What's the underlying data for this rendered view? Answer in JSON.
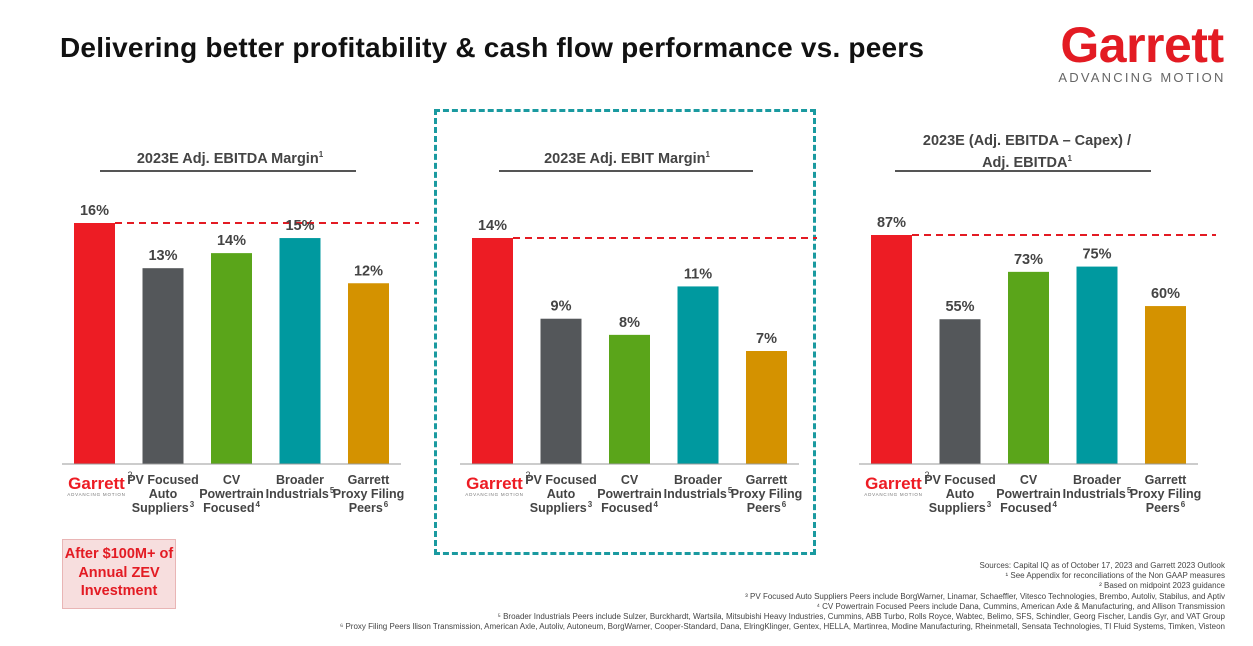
{
  "header": {
    "title": "Delivering better profitability & cash flow performance vs. peers",
    "logo_word": "Garrett",
    "logo_tagline": "ADVANCING MOTION"
  },
  "callout": {
    "text_line1": "After $100M+ of",
    "text_line2": "Annual ZEV",
    "text_line3": "Investment"
  },
  "colors": {
    "garrett_red": "#ed1c24",
    "pv_gray": "#54575a",
    "cv_green": "#5aa51a",
    "broader_teal": "#00999f",
    "proxy_gold": "#d49200",
    "dashed_line": "#e31b23",
    "highlight_border": "#1a9aa0"
  },
  "chart_data": [
    {
      "type": "bar",
      "title": "2023E Adj. EBITDA Margin",
      "title_sup": "1",
      "categories": [
        "Garrett",
        "PV Focused Auto Suppliers",
        "CV Powertrain Focused",
        "Broader Industrials",
        "Garrett Proxy Filing Peers"
      ],
      "values": [
        16,
        13,
        14,
        15,
        12
      ],
      "value_labels": [
        "16%",
        "13%",
        "14%",
        "15%",
        "12%"
      ],
      "ylim": [
        0,
        16
      ],
      "reference_line": 16
    },
    {
      "type": "bar",
      "title": "2023E Adj. EBIT Margin",
      "title_sup": "1",
      "categories": [
        "Garrett",
        "PV Focused Auto Suppliers",
        "CV Powertrain Focused",
        "Broader Industrials",
        "Garrett Proxy Filing Peers"
      ],
      "values": [
        14,
        9,
        8,
        11,
        7
      ],
      "value_labels": [
        "14%",
        "9%",
        "8%",
        "11%",
        "7%"
      ],
      "ylim": [
        0,
        14
      ],
      "reference_line": 14
    },
    {
      "type": "bar",
      "title": "2023E (Adj. EBITDA – Capex) /",
      "title_line2": "Adj. EBITDA",
      "title_sup": "1",
      "categories": [
        "Garrett",
        "PV Focused Auto Suppliers",
        "CV Powertrain Focused",
        "Broader Industrials",
        "Garrett Proxy Filing Peers"
      ],
      "values": [
        87,
        55,
        73,
        75,
        60
      ],
      "value_labels": [
        "87%",
        "55%",
        "73%",
        "75%",
        "60%"
      ],
      "ylim": [
        0,
        87
      ],
      "reference_line": 87
    }
  ],
  "category_labels": {
    "garrett_sup": "2",
    "garrett_tag": "ADVANCING MOTION",
    "pv": {
      "lines": [
        "PV Focused",
        "Auto",
        "Suppliers"
      ],
      "sup": "3"
    },
    "cv": {
      "lines": [
        "CV",
        "Powertrain",
        "Focused"
      ],
      "sup": "4"
    },
    "broader": {
      "lines": [
        "Broader",
        "Industrials"
      ],
      "sup": "5"
    },
    "proxy": {
      "lines": [
        "Garrett",
        "Proxy Filing",
        "Peers"
      ],
      "sup": "6"
    }
  },
  "footnotes": [
    "Sources: Capital IQ as of October 17, 2023 and Garrett 2023 Outlook",
    "¹ See Appendix for reconciliations of the Non GAAP measures",
    "² Based on midpoint 2023 guidance",
    "³ PV Focused Auto Suppliers Peers include BorgWarner, Linamar, Schaeffler, Vitesco Technologies, Brembo, Autoliv, Stabilus, and Aptiv",
    "⁴ CV Powertrain Focused Peers include Dana, Cummins, American Axle & Manufacturing, and Allison Transmission",
    "⁵ Broader Industrials Peers include Sulzer, Burckhardt, Wartsila, Mitsubishi Heavy Industries, Cummins, ABB Turbo, Rolls Royce, Wabtec, Belimo, SFS, Schindler, Georg Fischer, Landis Gyr, and VAT Group",
    "⁶ Proxy Filing Peers llison Transmission, American Axle, Autoliv, Autoneum, BorgWarner, Cooper-Standard, Dana, ElringKlinger, Gentex, HELLA, Martinrea, Modine Manufacturing, Rheinmetall, Sensata Technologies, TI Fluid Systems, Timken, Visteon"
  ]
}
